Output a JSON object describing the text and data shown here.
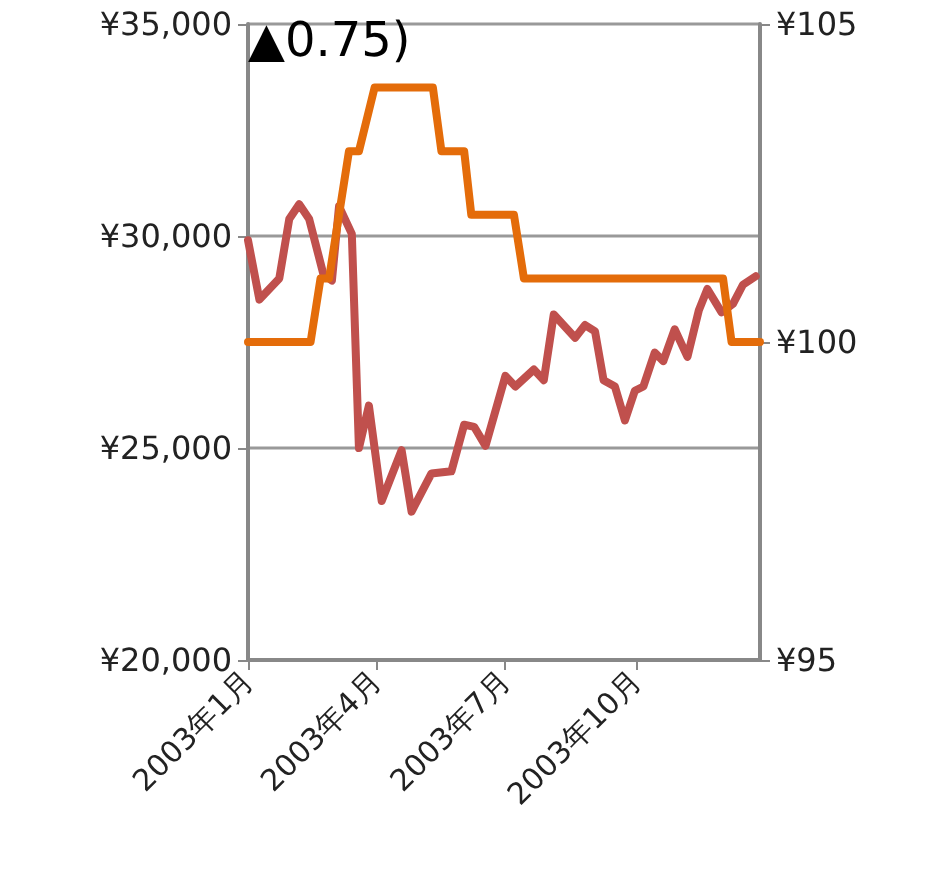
{
  "chart_data": {
    "type": "line",
    "annotations": [
      "▲0.75)"
    ],
    "xlim": [
      "2003-01-01",
      "2003-12-27"
    ],
    "xticks": [
      {
        "value": "2003-01-01",
        "label": "2003年1月"
      },
      {
        "value": "2003-04-01",
        "label": "2003年4月"
      },
      {
        "value": "2003-07-01",
        "label": "2003年7月"
      },
      {
        "value": "2003-10-01",
        "label": "2003年10月"
      }
    ],
    "ylim": [
      20000,
      35000
    ],
    "yticks": [
      {
        "value": 20000,
        "label": "¥20,000"
      },
      {
        "value": 25000,
        "label": "¥25,000"
      },
      {
        "value": 30000,
        "label": "¥30,000"
      },
      {
        "value": 35000,
        "label": "¥35,000"
      }
    ],
    "y2lim": [
      95,
      105
    ],
    "y2ticks": [
      {
        "value": 95,
        "label": "¥95"
      },
      {
        "value": 100,
        "label": "¥100"
      },
      {
        "value": 105,
        "label": "¥105"
      }
    ],
    "grid": "y",
    "marker": "none",
    "line_style": "solid",
    "series": [
      {
        "color": "#c0504d",
        "x": [
          "2003-01-01",
          "2003-01-09",
          "2003-01-23",
          "2003-01-30",
          "2003-02-06",
          "2003-02-13",
          "2003-02-23",
          "2003-03-01",
          "2003-03-06",
          "2003-03-15",
          "2003-03-20",
          "2003-03-27",
          "2003-04-05",
          "2003-04-19",
          "2003-04-26",
          "2003-05-10",
          "2003-05-24",
          "2003-06-02",
          "2003-06-09",
          "2003-06-17",
          "2003-07-01",
          "2003-07-08",
          "2003-07-21",
          "2003-07-28",
          "2003-08-04",
          "2003-08-19",
          "2003-08-26",
          "2003-09-02",
          "2003-09-08",
          "2003-09-16",
          "2003-09-23",
          "2003-09-30",
          "2003-10-06",
          "2003-10-14",
          "2003-10-20",
          "2003-10-28",
          "2003-11-06",
          "2003-11-14",
          "2003-11-20",
          "2003-11-30",
          "2003-12-08",
          "2003-12-15",
          "2003-12-24"
        ],
        "values": [
          29900,
          28500,
          29000,
          30400,
          30750,
          30400,
          29100,
          28950,
          30700,
          30050,
          25000,
          26000,
          23750,
          24950,
          23500,
          24400,
          24450,
          25550,
          25500,
          25050,
          26700,
          26450,
          26850,
          26600,
          28150,
          27600,
          27900,
          27750,
          26600,
          26450,
          25650,
          26350,
          26450,
          27250,
          27050,
          27800,
          27150,
          28250,
          28750,
          28200,
          28400,
          28850,
          29050
        ]
      },
      {
        "color": "#e46c0a",
        "axis": "y2",
        "x": [
          "2003-01-01",
          "2003-02-14",
          "2003-02-21",
          "2003-02-27",
          "2003-03-13",
          "2003-03-20",
          "2003-03-31",
          "2003-05-11",
          "2003-05-17",
          "2003-06-02",
          "2003-06-07",
          "2003-07-07",
          "2003-07-14",
          "2003-12-01",
          "2003-12-07",
          "2003-12-27"
        ],
        "values": [
          100,
          100,
          101,
          101,
          103,
          103,
          104,
          104,
          103,
          103,
          102,
          102,
          101,
          101,
          100,
          100
        ]
      }
    ]
  }
}
